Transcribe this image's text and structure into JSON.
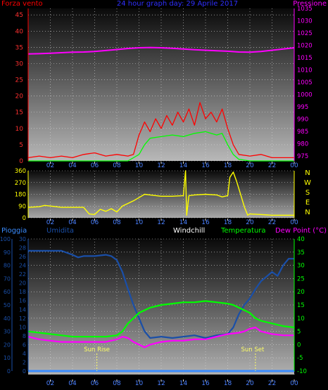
{
  "chart_data": [
    {
      "type": "line",
      "title": "24 hour graph day:  29 Aprile 2017",
      "ylabel_left": "Forza vento",
      "ylabel_right": "Pressione",
      "x_ticks": [
        "02",
        "04",
        "06",
        "08",
        "10",
        "12",
        "14",
        "16",
        "18",
        "20",
        "22",
        "00"
      ],
      "y_left_ticks": [
        0,
        5,
        10,
        15,
        20,
        25,
        30,
        35,
        40,
        45
      ],
      "y_right_ticks": [
        975,
        980,
        985,
        990,
        995,
        1000,
        1005,
        1010,
        1015,
        1020,
        1025,
        1030,
        1035
      ],
      "ylim_left": [
        0,
        47
      ],
      "ylim_right": [
        973,
        1035
      ],
      "colors": {
        "wind_gust": "#ff0000",
        "wind_avg": "#00ff00",
        "pressure": "#ff00ff"
      },
      "series": [
        {
          "key": "pressure",
          "axis": "right",
          "x": [
            0,
            1,
            2,
            3,
            4,
            5,
            6,
            7,
            8,
            9,
            10,
            11,
            12,
            13,
            14,
            15,
            16,
            17,
            18,
            19,
            20,
            21,
            22,
            23,
            24
          ],
          "y": [
            1016.5,
            1016.6,
            1016.8,
            1017,
            1017.2,
            1017.3,
            1017.5,
            1017.9,
            1018.3,
            1018.7,
            1019,
            1019.1,
            1019,
            1018.8,
            1018.5,
            1018.2,
            1018,
            1017.8,
            1017.6,
            1017.3,
            1017.2,
            1017.5,
            1018,
            1018.5,
            1019
          ]
        },
        {
          "key": "wind_gust",
          "axis": "left",
          "x": [
            0,
            1,
            2,
            3,
            4,
            5,
            6,
            7,
            8,
            9,
            9.5,
            10,
            10.5,
            11,
            11.5,
            12,
            12.5,
            13,
            13.5,
            14,
            14.5,
            15,
            15.5,
            16,
            16.5,
            17,
            17.5,
            18,
            18.5,
            19,
            20,
            21,
            22,
            23,
            24
          ],
          "y": [
            1,
            1.5,
            1,
            1.5,
            1,
            2,
            2.5,
            1.5,
            2,
            1.5,
            2,
            8,
            12,
            9,
            13,
            10,
            14,
            11,
            15,
            12,
            16,
            11,
            18,
            13,
            15,
            12,
            16,
            10,
            5,
            2,
            1.5,
            2,
            1,
            1,
            1
          ]
        },
        {
          "key": "wind_avg",
          "axis": "left",
          "x": [
            0,
            9,
            10,
            10.5,
            11,
            12,
            13,
            14,
            15,
            16,
            17,
            17.5,
            18,
            18.5,
            19,
            20,
            24
          ],
          "y": [
            0,
            0,
            2,
            5,
            7,
            7.5,
            8,
            7.5,
            8.5,
            9,
            8,
            8.5,
            5,
            2,
            0.5,
            0,
            0
          ]
        }
      ]
    },
    {
      "type": "line",
      "title": "",
      "ylabel_right": [
        "N",
        "W",
        "S",
        "E",
        "N"
      ],
      "x_ticks": [
        "02",
        "04",
        "06",
        "08",
        "10",
        "12",
        "14",
        "16",
        "18",
        "20",
        "22",
        "00"
      ],
      "y_ticks": [
        0,
        90,
        180,
        270,
        360
      ],
      "ylim": [
        0,
        360
      ],
      "colors": {
        "direction": "#ffff00"
      },
      "series": [
        {
          "key": "direction",
          "x": [
            0,
            1,
            1.5,
            3,
            4,
            5,
            5.5,
            6,
            6.5,
            7,
            7.5,
            8,
            8.5,
            9,
            9.5,
            10,
            10.5,
            11,
            12,
            13,
            14,
            14.2,
            14.3,
            14.5,
            15,
            16,
            17,
            17.5,
            18,
            18.2,
            18.5,
            18.8,
            19.2,
            19.5,
            19.8,
            20,
            21,
            22,
            23,
            24
          ],
          "y": [
            80,
            85,
            95,
            80,
            80,
            80,
            30,
            25,
            65,
            50,
            70,
            45,
            90,
            110,
            130,
            155,
            180,
            175,
            165,
            165,
            170,
            360,
            20,
            170,
            175,
            180,
            175,
            160,
            170,
            310,
            350,
            280,
            170,
            85,
            20,
            30,
            25,
            20,
            20,
            20
          ]
        }
      ]
    },
    {
      "type": "line",
      "title": "",
      "labels": {
        "pioggia": "Pioggia",
        "umidita": "Umidita",
        "windchill": "Windchill",
        "temperatura": "Temperatura",
        "dewpoint": "Dew Point (°C)",
        "sunrise": "Sun Rise",
        "sunset": "Sun Set"
      },
      "x_ticks": [
        "02",
        "04",
        "06",
        "08",
        "10",
        "12",
        "14",
        "16",
        "18",
        "20",
        "22",
        "00"
      ],
      "y_far_left_ticks": [
        0,
        10,
        20,
        30,
        40,
        50,
        60,
        70,
        80,
        90,
        100
      ],
      "y_left_ticks": [
        0,
        2,
        4,
        6,
        8,
        10,
        12,
        14,
        16,
        18,
        20,
        22,
        24,
        26,
        28,
        30
      ],
      "y_right_ticks": [
        -10,
        -5,
        0,
        5,
        10,
        15,
        20,
        25,
        30,
        35,
        40
      ],
      "ylim_humidity": [
        0,
        100
      ],
      "ylim_temperature": [
        -10,
        40
      ],
      "sunrise_hour": 6.2,
      "sunset_hour": 20.5,
      "colors": {
        "umidita": "#1a4fa8",
        "temperatura": "#00ff00",
        "dewpoint": "#ff00ff",
        "pioggia": "#3a8cff",
        "windchill": "#ffffff",
        "sun": "#ffff66"
      },
      "series": [
        {
          "key": "umidita",
          "axis": "humidity",
          "x": [
            0,
            1,
            2,
            3,
            4,
            4.5,
            5,
            6,
            7,
            7.5,
            8,
            8.5,
            9,
            9.5,
            10,
            10.5,
            11,
            12,
            13,
            14,
            15,
            16,
            17,
            18,
            18.5,
            19,
            19.5,
            20,
            20.5,
            21,
            22,
            22.5,
            23,
            23.5,
            24
          ],
          "y": [
            91,
            91,
            91,
            91,
            88,
            86,
            87,
            87,
            88,
            87,
            84,
            75,
            62,
            50,
            40,
            30,
            25,
            26,
            25,
            26,
            27,
            25,
            27,
            28,
            33,
            43,
            50,
            55,
            62,
            68,
            75,
            72,
            80,
            85,
            85
          ]
        },
        {
          "key": "temperatura",
          "axis": "temperature",
          "x": [
            0,
            1,
            2,
            3,
            4,
            5,
            6,
            7,
            8,
            8.5,
            9,
            9.5,
            10,
            10.5,
            11,
            12,
            13,
            14,
            15,
            16,
            17,
            18,
            18.5,
            19,
            19.5,
            20,
            20.5,
            21,
            22,
            23,
            24
          ],
          "y": [
            5,
            4.5,
            4,
            3.5,
            3,
            3,
            3,
            3,
            3.5,
            5,
            8,
            10,
            12,
            13,
            14,
            15,
            15.5,
            16,
            16,
            16.5,
            16,
            15.5,
            15,
            14,
            13,
            12,
            10,
            9,
            8,
            7,
            6.5
          ]
        },
        {
          "key": "dewpoint",
          "axis": "temperature",
          "x": [
            0,
            1,
            2,
            3,
            4,
            5,
            6,
            7,
            8,
            8.5,
            9,
            9.5,
            10,
            10.5,
            11,
            12,
            13,
            14,
            15,
            16,
            17,
            17.5,
            18,
            19,
            19.5,
            20,
            20.5,
            21,
            22,
            23,
            24
          ],
          "y": [
            3,
            2,
            1.5,
            1,
            1,
            1,
            1,
            1,
            2,
            3,
            2.5,
            1,
            0,
            -1,
            0,
            1,
            1.5,
            1.5,
            2,
            2,
            3,
            3.5,
            4,
            4.5,
            5,
            6,
            6.5,
            5,
            4,
            3.5,
            3.5
          ]
        },
        {
          "key": "pioggia",
          "axis": "humidity",
          "x": [
            0,
            24
          ],
          "y": [
            0,
            0
          ]
        }
      ]
    }
  ]
}
